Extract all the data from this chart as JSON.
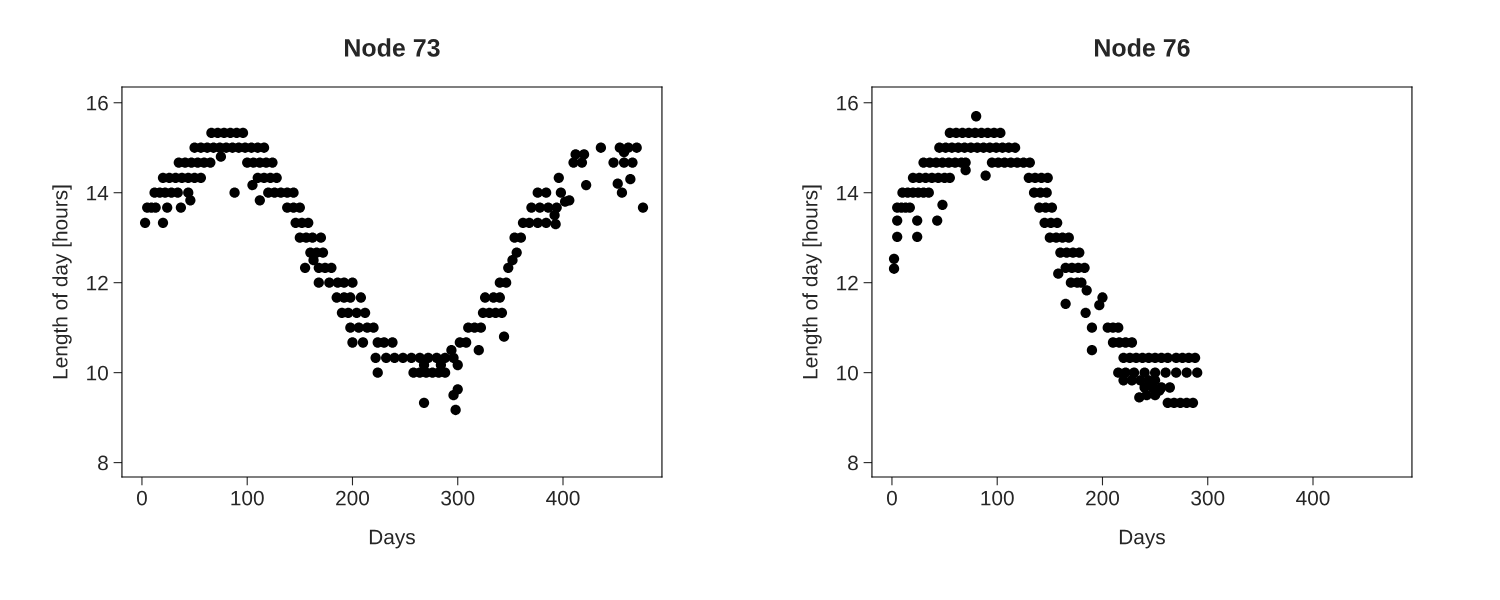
{
  "chart_data": [
    {
      "type": "scatter",
      "title": "Node 73",
      "xlabel": "Days",
      "ylabel": "Length of day [hours]",
      "xlim": [
        -19,
        494
      ],
      "ylim": [
        7.68,
        16.35
      ],
      "xticks": [
        0,
        100,
        200,
        300,
        400
      ],
      "yticks": [
        8,
        10,
        12,
        14,
        16
      ],
      "grid": false,
      "marker": "circle",
      "legend": false,
      "series": [
        {
          "color": "#000000",
          "x": [
            3,
            20,
            5,
            9,
            13,
            24,
            37,
            46,
            12,
            17,
            22,
            28,
            34,
            44,
            20,
            26,
            32,
            38,
            44,
            50,
            56,
            35,
            41,
            47,
            53,
            59,
            65,
            50,
            56,
            62,
            68,
            74,
            80,
            86,
            92,
            98,
            104,
            110,
            116,
            66,
            72,
            78,
            84,
            90,
            96,
            75,
            88,
            100,
            106,
            112,
            118,
            124,
            105,
            110,
            116,
            122,
            128,
            112,
            120,
            126,
            132,
            138,
            144,
            138,
            144,
            150,
            146,
            152,
            158,
            150,
            156,
            162,
            170,
            155,
            160,
            166,
            172,
            163,
            168,
            174,
            180,
            168,
            178,
            186,
            192,
            200,
            185,
            192,
            198,
            208,
            190,
            196,
            204,
            212,
            198,
            206,
            214,
            220,
            200,
            210,
            224,
            230,
            238,
            222,
            224,
            232,
            240,
            248,
            256,
            264,
            272,
            280,
            288,
            296,
            258,
            264,
            270,
            276,
            282,
            288,
            268,
            284,
            268,
            296,
            300,
            298,
            294,
            300,
            302,
            308,
            310,
            316,
            322,
            320,
            324,
            330,
            336,
            342,
            326,
            334,
            340,
            344,
            340,
            346,
            348,
            352,
            356,
            354,
            360,
            362,
            368,
            376,
            384,
            370,
            378,
            386,
            394,
            376,
            384,
            392,
            393,
            396,
            398,
            402,
            406,
            412,
            410,
            418,
            420,
            422,
            436,
            448,
            452,
            454,
            458,
            456,
            458,
            462,
            464,
            466,
            470,
            476
          ],
          "values": [
            13.33,
            13.33,
            13.67,
            13.67,
            13.67,
            13.67,
            13.67,
            13.83,
            14.0,
            14.0,
            14.0,
            14.0,
            14.0,
            14.0,
            14.33,
            14.33,
            14.33,
            14.33,
            14.33,
            14.33,
            14.33,
            14.67,
            14.67,
            14.67,
            14.67,
            14.67,
            14.67,
            15.0,
            15.0,
            15.0,
            15.0,
            15.0,
            15.0,
            15.0,
            15.0,
            15.0,
            15.0,
            15.0,
            15.0,
            15.33,
            15.33,
            15.33,
            15.33,
            15.33,
            15.33,
            14.8,
            14.0,
            14.67,
            14.67,
            14.67,
            14.67,
            14.67,
            14.17,
            14.33,
            14.33,
            14.33,
            14.33,
            13.83,
            14.0,
            14.0,
            14.0,
            14.0,
            14.0,
            13.67,
            13.67,
            13.67,
            13.33,
            13.33,
            13.33,
            13.0,
            13.0,
            13.0,
            13.0,
            12.33,
            12.67,
            12.67,
            12.67,
            12.5,
            12.33,
            12.33,
            12.33,
            12.0,
            12.0,
            12.0,
            12.0,
            12.0,
            11.67,
            11.67,
            11.67,
            11.67,
            11.33,
            11.33,
            11.33,
            11.33,
            11.0,
            11.0,
            11.0,
            11.0,
            10.67,
            10.67,
            10.67,
            10.67,
            10.67,
            10.33,
            10.0,
            10.33,
            10.33,
            10.33,
            10.33,
            10.33,
            10.33,
            10.33,
            10.33,
            10.33,
            10.0,
            10.0,
            10.0,
            10.0,
            10.0,
            10.0,
            10.17,
            10.17,
            9.33,
            9.5,
            9.63,
            9.17,
            10.5,
            10.17,
            10.67,
            10.67,
            11.0,
            11.0,
            11.0,
            10.5,
            11.33,
            11.33,
            11.33,
            11.33,
            11.67,
            11.67,
            11.67,
            10.8,
            12.0,
            12.0,
            12.33,
            12.5,
            12.67,
            13.0,
            13.0,
            13.33,
            13.33,
            13.33,
            13.33,
            13.67,
            13.67,
            13.67,
            13.67,
            14.0,
            14.0,
            13.5,
            13.3,
            14.33,
            14.0,
            13.8,
            13.83,
            14.85,
            14.67,
            14.67,
            14.85,
            14.17,
            15.0,
            14.67,
            14.2,
            15.0,
            14.9,
            14.0,
            14.67,
            15.0,
            14.3,
            14.67,
            15.0,
            13.67
          ]
        }
      ]
    },
    {
      "type": "scatter",
      "title": "Node 76",
      "xlabel": "Days",
      "ylabel": "Length of day [hours]",
      "xlim": [
        -19,
        494
      ],
      "ylim": [
        7.68,
        16.35
      ],
      "xticks": [
        0,
        100,
        200,
        300,
        400
      ],
      "yticks": [
        8,
        10,
        12,
        14,
        16
      ],
      "grid": false,
      "marker": "circle",
      "legend": false,
      "series": [
        {
          "color": "#000000",
          "x": [
            2,
            2,
            5,
            24,
            5,
            24,
            43,
            48,
            5,
            9,
            13,
            17,
            10,
            15,
            20,
            25,
            30,
            35,
            20,
            26,
            32,
            38,
            44,
            50,
            55,
            30,
            36,
            42,
            48,
            54,
            60,
            66,
            70,
            45,
            51,
            57,
            63,
            69,
            75,
            81,
            87,
            93,
            99,
            105,
            111,
            117,
            55,
            61,
            67,
            73,
            79,
            85,
            91,
            97,
            103,
            80,
            89,
            70,
            95,
            101,
            107,
            113,
            119,
            125,
            131,
            130,
            136,
            142,
            148,
            135,
            141,
            147,
            140,
            146,
            152,
            145,
            151,
            157,
            150,
            156,
            162,
            168,
            160,
            166,
            172,
            178,
            165,
            171,
            177,
            183,
            170,
            176,
            180,
            165,
            158,
            185,
            184,
            200,
            197,
            190,
            190,
            205,
            210,
            215,
            210,
            216,
            222,
            228,
            220,
            226,
            232,
            238,
            244,
            250,
            256,
            262,
            215,
            222,
            230,
            240,
            250,
            260,
            270,
            280,
            290,
            270,
            276,
            282,
            288,
            220,
            228,
            236,
            244,
            250,
            240,
            248,
            256,
            264,
            242,
            250,
            254,
            262,
            268,
            274,
            280,
            286,
            235
          ],
          "values": [
            12.31,
            12.53,
            13.02,
            13.02,
            13.38,
            13.38,
            13.38,
            13.73,
            13.67,
            13.67,
            13.67,
            13.67,
            14.0,
            14.0,
            14.0,
            14.0,
            14.0,
            14.0,
            14.33,
            14.33,
            14.33,
            14.33,
            14.33,
            14.33,
            14.33,
            14.67,
            14.67,
            14.67,
            14.67,
            14.67,
            14.67,
            14.67,
            14.67,
            15.0,
            15.0,
            15.0,
            15.0,
            15.0,
            15.0,
            15.0,
            15.0,
            15.0,
            15.0,
            15.0,
            15.0,
            15.0,
            15.33,
            15.33,
            15.33,
            15.33,
            15.33,
            15.33,
            15.33,
            15.33,
            15.33,
            15.7,
            14.38,
            14.5,
            14.67,
            14.67,
            14.67,
            14.67,
            14.67,
            14.67,
            14.67,
            14.33,
            14.33,
            14.33,
            14.33,
            14.0,
            14.0,
            14.0,
            13.67,
            13.67,
            13.67,
            13.33,
            13.33,
            13.33,
            13.0,
            13.0,
            13.0,
            13.0,
            12.67,
            12.67,
            12.67,
            12.67,
            12.33,
            12.33,
            12.33,
            12.33,
            12.0,
            12.0,
            12.0,
            11.53,
            12.2,
            11.83,
            11.33,
            11.67,
            11.5,
            11.0,
            10.5,
            11.0,
            11.0,
            11.0,
            10.67,
            10.67,
            10.67,
            10.67,
            10.33,
            10.33,
            10.33,
            10.33,
            10.33,
            10.33,
            10.33,
            10.33,
            10.0,
            10.0,
            10.0,
            10.0,
            10.0,
            10.0,
            10.0,
            10.0,
            10.0,
            10.33,
            10.33,
            10.33,
            10.33,
            9.83,
            9.83,
            9.83,
            9.83,
            9.83,
            9.67,
            9.67,
            9.67,
            9.67,
            9.5,
            9.5,
            9.6,
            9.33,
            9.33,
            9.33,
            9.33,
            9.33,
            9.45
          ]
        }
      ]
    }
  ]
}
